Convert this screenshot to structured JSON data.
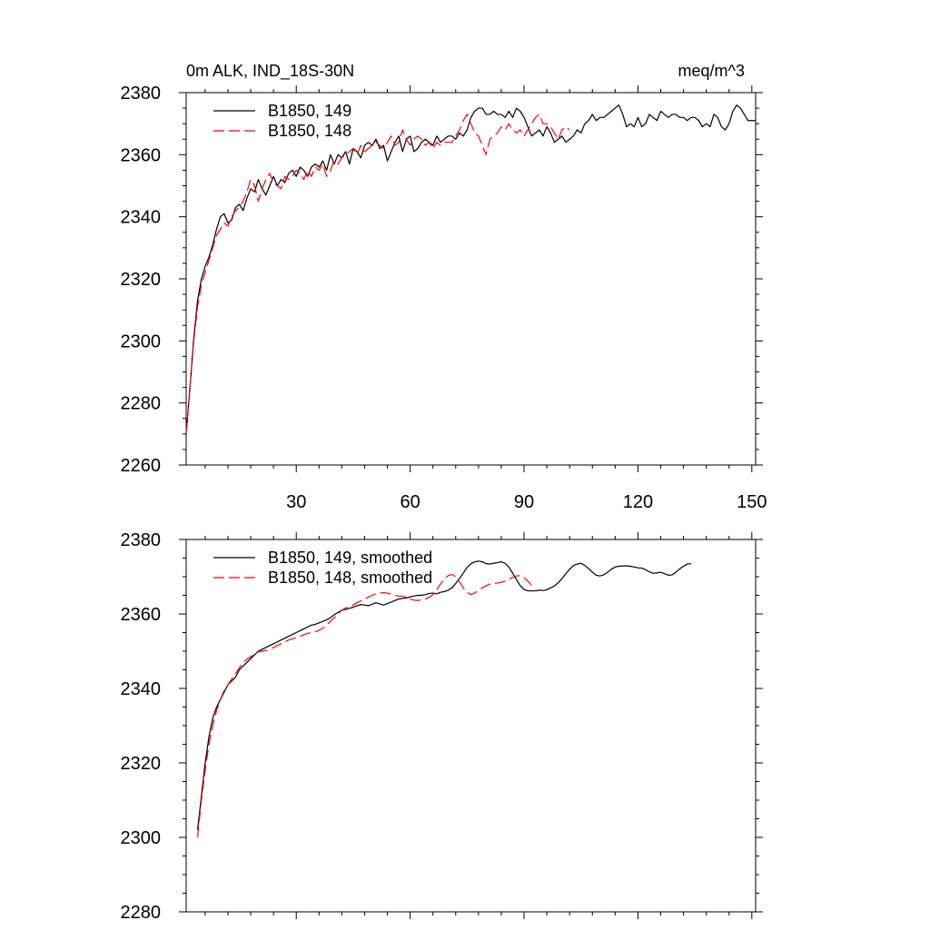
{
  "header": {
    "title_left": "0m ALK, IND_18S-30N",
    "title_right": "meq/m^3"
  },
  "chart_data": [
    {
      "type": "line",
      "xlim": [
        1,
        151
      ],
      "ylim": [
        2260,
        2380
      ],
      "xticks": [
        30,
        60,
        90,
        120,
        150
      ],
      "yticks": [
        2260,
        2280,
        2300,
        2320,
        2340,
        2360,
        2380
      ],
      "xtick_labels_shown": true,
      "legend_position": "top-left",
      "grid": false,
      "series": [
        {
          "name": "B1850, 149",
          "color": "#000000",
          "dash": "solid",
          "x_start": 1,
          "values": [
            2270.0,
            2285.0,
            2301.0,
            2313.0,
            2320.0,
            2324.0,
            2327.0,
            2331.0,
            2336.0,
            2340.0,
            2341.0,
            2338.0,
            2339.0,
            2343.0,
            2344.0,
            2342.0,
            2346.0,
            2349.0,
            2348.0,
            2352.0,
            2349.0,
            2347.0,
            2350.0,
            2353.0,
            2350.0,
            2352.0,
            2351.0,
            2354.0,
            2355.0,
            2353.0,
            2356.0,
            2355.0,
            2353.0,
            2356.0,
            2357.0,
            2356.0,
            2358.0,
            2355.0,
            2360.0,
            2357.0,
            2360.0,
            2359.0,
            2361.0,
            2357.0,
            2362.0,
            2361.0,
            2359.0,
            2363.0,
            2364.0,
            2363.0,
            2365.0,
            2362.0,
            2363.0,
            2358.0,
            2361.0,
            2364.0,
            2366.0,
            2361.0,
            2365.0,
            2366.0,
            2361.0,
            2362.0,
            2364.0,
            2365.0,
            2364.0,
            2363.0,
            2366.0,
            2364.0,
            2365.0,
            2366.0,
            2366.0,
            2365.0,
            2367.0,
            2366.0,
            2368.0,
            2372.0,
            2374.0,
            2375.0,
            2375.0,
            2373.0,
            2373.0,
            2374.0,
            2373.0,
            2373.0,
            2372.0,
            2374.0,
            2372.0,
            2375.0,
            2374.0,
            2372.0,
            2369.0,
            2366.0,
            2367.0,
            2368.0,
            2366.0,
            2369.0,
            2367.0,
            2364.0,
            2365.0,
            2366.0,
            2364.0,
            2365.0,
            2366.0,
            2368.0,
            2367.0,
            2370.0,
            2371.0,
            2373.0,
            2371.0,
            2372.0,
            2372.0,
            2373.0,
            2374.0,
            2375.0,
            2376.0,
            2373.0,
            2369.0,
            2370.0,
            2369.0,
            2372.0,
            2369.0,
            2370.0,
            2373.0,
            2372.0,
            2371.0,
            2374.0,
            2373.0,
            2372.0,
            2373.0,
            2373.0,
            2372.0,
            2372.0,
            2371.0,
            2372.0,
            2372.0,
            2371.0,
            2369.0,
            2370.0,
            2369.0,
            2373.0,
            2372.0,
            2369.0,
            2368.0,
            2370.0,
            2374.0,
            2376.0,
            2375.0,
            2373.0,
            2371.0,
            2371.0,
            2371.0
          ]
        },
        {
          "name": "B1850, 148",
          "color": "#ff0000",
          "dash": "dashed",
          "x_start": 1,
          "values": [
            2270.0,
            2285.0,
            2300.0,
            2311.0,
            2318.0,
            2322.0,
            2326.0,
            2330.0,
            2334.0,
            2336.0,
            2338.0,
            2337.0,
            2340.0,
            2342.0,
            2343.0,
            2345.0,
            2348.0,
            2352.0,
            2350.0,
            2345.0,
            2349.0,
            2352.0,
            2354.0,
            2351.0,
            2350.0,
            2349.0,
            2353.0,
            2352.0,
            2353.0,
            2355.0,
            2354.0,
            2352.0,
            2355.0,
            2353.0,
            2356.0,
            2355.0,
            2357.0,
            2353.0,
            2355.0,
            2358.0,
            2357.0,
            2359.0,
            2360.0,
            2361.0,
            2362.0,
            2360.0,
            2363.0,
            2361.0,
            2362.0,
            2363.0,
            2364.0,
            2363.0,
            2362.0,
            2364.0,
            2366.0,
            2363.0,
            2364.0,
            2368.0,
            2365.0,
            2363.0,
            2365.0,
            2366.0,
            2365.0,
            2363.0,
            2364.0,
            2362.0,
            2364.0,
            2363.0,
            2364.0,
            2364.0,
            2364.0,
            2366.0,
            2368.0,
            2371.0,
            2373.0,
            2370.0,
            2367.0,
            2366.0,
            2363.0,
            2360.0,
            2365.0,
            2366.0,
            2367.0,
            2369.0,
            2368.0,
            2370.0,
            2368.0,
            2367.0,
            2368.0,
            2366.0,
            2368.0,
            2370.0,
            2372.0,
            2373.0,
            2370.0,
            2370.0,
            2369.0,
            2367.0,
            2365.0,
            2368.0,
            2369.0,
            2368.0
          ]
        }
      ]
    },
    {
      "type": "line",
      "xlim": [
        1,
        151
      ],
      "ylim": [
        2280,
        2380
      ],
      "xticks": [
        30,
        60,
        90,
        120,
        150
      ],
      "yticks": [
        2280,
        2300,
        2320,
        2340,
        2360,
        2380
      ],
      "xtick_labels_shown": false,
      "legend_position": "top-left",
      "grid": false,
      "series": [
        {
          "name": "B1850, 149, smoothed",
          "color": "#000000",
          "dash": "solid",
          "x_start": 4,
          "values": [
            2302.0,
            2311.0,
            2320.0,
            2327.0,
            2332.0,
            2335.0,
            2337.0,
            2339.0,
            2341.0,
            2342.0,
            2343.0,
            2345.0,
            2346.0,
            2347.0,
            2348.0,
            2349.0,
            2350.0,
            2350.5,
            2351.0,
            2351.5,
            2352.0,
            2352.5,
            2353.0,
            2353.5,
            2354.0,
            2354.5,
            2355.0,
            2355.5,
            2356.0,
            2356.5,
            2357.0,
            2357.2,
            2357.6,
            2358.0,
            2358.4,
            2359.0,
            2359.8,
            2360.4,
            2361.0,
            2361.2,
            2361.5,
            2361.8,
            2362.2,
            2362.5,
            2362.4,
            2362.2,
            2362.6,
            2363.0,
            2362.7,
            2362.4,
            2362.8,
            2363.2,
            2363.6,
            2364.0,
            2364.2,
            2364.3,
            2364.6,
            2364.8,
            2365.0,
            2365.0,
            2365.2,
            2365.5,
            2365.6,
            2365.4,
            2365.8,
            2366.0,
            2366.4,
            2367.0,
            2368.2,
            2369.5,
            2371.0,
            2372.5,
            2373.5,
            2374.0,
            2374.2,
            2374.0,
            2373.5,
            2373.4,
            2373.6,
            2373.8,
            2374.0,
            2373.6,
            2372.6,
            2371.0,
            2369.2,
            2367.6,
            2366.6,
            2366.2,
            2366.2,
            2366.2,
            2366.4,
            2366.3,
            2366.5,
            2367.0,
            2367.5,
            2368.4,
            2369.5,
            2370.8,
            2372.0,
            2373.0,
            2373.4,
            2373.6,
            2373.0,
            2372.2,
            2371.2,
            2370.4,
            2370.2,
            2370.5,
            2371.2,
            2372.0,
            2372.6,
            2372.8,
            2372.9,
            2372.9,
            2372.8,
            2372.6,
            2372.4,
            2372.3,
            2371.9,
            2371.3,
            2370.9,
            2371.0,
            2371.2,
            2370.8,
            2370.4,
            2370.5,
            2371.2,
            2372.1,
            2372.8,
            2373.4,
            2373.5
          ]
        },
        {
          "name": "B1850, 148, smoothed",
          "color": "#ff0000",
          "dash": "dashed",
          "x_start": 4,
          "values": [
            2300.0,
            2310.0,
            2318.0,
            2325.0,
            2330.0,
            2334.0,
            2337.0,
            2339.5,
            2341.0,
            2342.5,
            2344.0,
            2345.5,
            2347.0,
            2347.8,
            2348.5,
            2349.2,
            2349.8,
            2350.0,
            2350.2,
            2350.5,
            2351.0,
            2351.5,
            2352.0,
            2352.5,
            2353.0,
            2353.3,
            2353.6,
            2354.0,
            2354.4,
            2354.8,
            2355.0,
            2355.2,
            2355.6,
            2356.2,
            2357.0,
            2358.0,
            2359.0,
            2360.0,
            2361.0,
            2361.6,
            2362.0,
            2362.4,
            2363.0,
            2363.5,
            2364.0,
            2364.5,
            2365.0,
            2365.4,
            2365.6,
            2365.7,
            2365.6,
            2365.3,
            2365.0,
            2364.8,
            2364.8,
            2364.5,
            2364.0,
            2363.7,
            2363.6,
            2363.8,
            2364.0,
            2364.4,
            2365.2,
            2366.5,
            2368.0,
            2369.4,
            2370.3,
            2370.6,
            2370.0,
            2368.6,
            2367.0,
            2365.8,
            2365.2,
            2365.6,
            2366.3,
            2367.0,
            2367.6,
            2368.0,
            2368.2,
            2368.3,
            2368.5,
            2368.8,
            2369.3,
            2369.8,
            2370.2,
            2370.3,
            2369.8,
            2368.8,
            2367.7
          ]
        }
      ]
    }
  ]
}
